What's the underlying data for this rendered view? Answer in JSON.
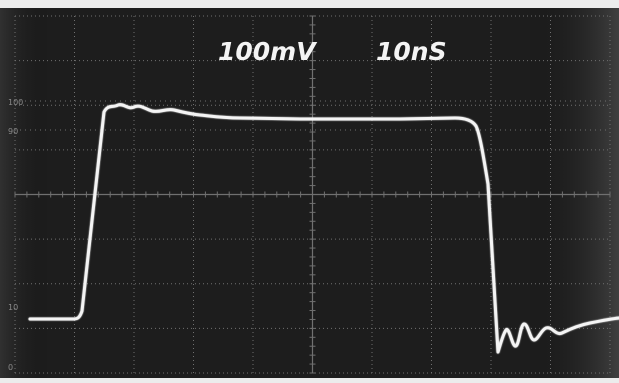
{
  "screen": {
    "volts_per_div": "100mV",
    "time_per_div": "10nS",
    "graticule_marks": {
      "upper_100": "100",
      "upper_90": "90",
      "lower_10": "10",
      "lower_0": "0"
    }
  },
  "colors": {
    "screen_background": "#1d1d1d",
    "trace": "#f4f4f4",
    "graticule": "#707070",
    "frame": "#ececec"
  }
}
